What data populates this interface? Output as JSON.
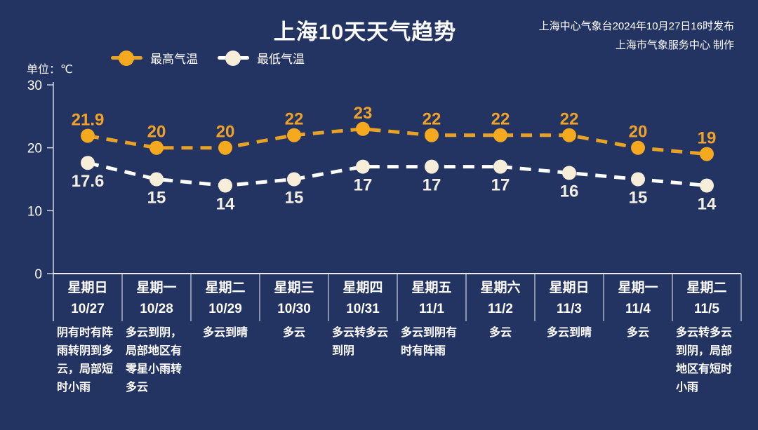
{
  "title": "上海10天天气趋势",
  "publisher": {
    "line1": "上海中心气象台2024年10月27日16时发布",
    "line2": "上海市气象服务中心 制作"
  },
  "colors": {
    "background": "#243462",
    "axis": "#CBD3E2",
    "baseline": "#E9EDF5",
    "text": "#FFFFFF"
  },
  "chart_data": {
    "type": "line",
    "title": "上海10天天气趋势",
    "ylabel": "单位：℃",
    "xlabel": "",
    "ylim": [
      0,
      30
    ],
    "yticks": [
      30,
      20,
      10,
      0
    ],
    "grid": false,
    "legend_position": "top-left",
    "line_style": "dashed",
    "x": [
      {
        "weekday": "星期日",
        "date": "10/27",
        "weather": "阴有时有阵雨转阴到多云，局部短时小雨"
      },
      {
        "weekday": "星期一",
        "date": "10/28",
        "weather": "多云到阴，局部地区有零星小雨转多云"
      },
      {
        "weekday": "星期二",
        "date": "10/29",
        "weather": "多云到晴"
      },
      {
        "weekday": "星期三",
        "date": "10/30",
        "weather": "多云"
      },
      {
        "weekday": "星期四",
        "date": "10/31",
        "weather": "多云转多云到阴"
      },
      {
        "weekday": "星期五",
        "date": "11/1",
        "weather": "多云到阴有时有阵雨"
      },
      {
        "weekday": "星期六",
        "date": "11/2",
        "weather": "多云"
      },
      {
        "weekday": "星期日",
        "date": "11/3",
        "weather": "多云到晴"
      },
      {
        "weekday": "星期一",
        "date": "11/4",
        "weather": "多云"
      },
      {
        "weekday": "星期二",
        "date": "11/5",
        "weather": "多云转多云到阴，局部地区有短时小雨"
      }
    ],
    "series": [
      {
        "name": "最高气温",
        "values": [
          21.9,
          20,
          20,
          22,
          23,
          22,
          22,
          22,
          20,
          19
        ],
        "line_color": "#E8A226",
        "marker_color": "#F5A91E",
        "label_color": "#EFA227"
      },
      {
        "name": "最低气温",
        "values": [
          17.6,
          15,
          14,
          15,
          17,
          17,
          17,
          16,
          15,
          14
        ],
        "line_color": "#FFFFFF",
        "marker_color": "#F7EEDA",
        "label_color": "#F2EFE4"
      }
    ]
  }
}
